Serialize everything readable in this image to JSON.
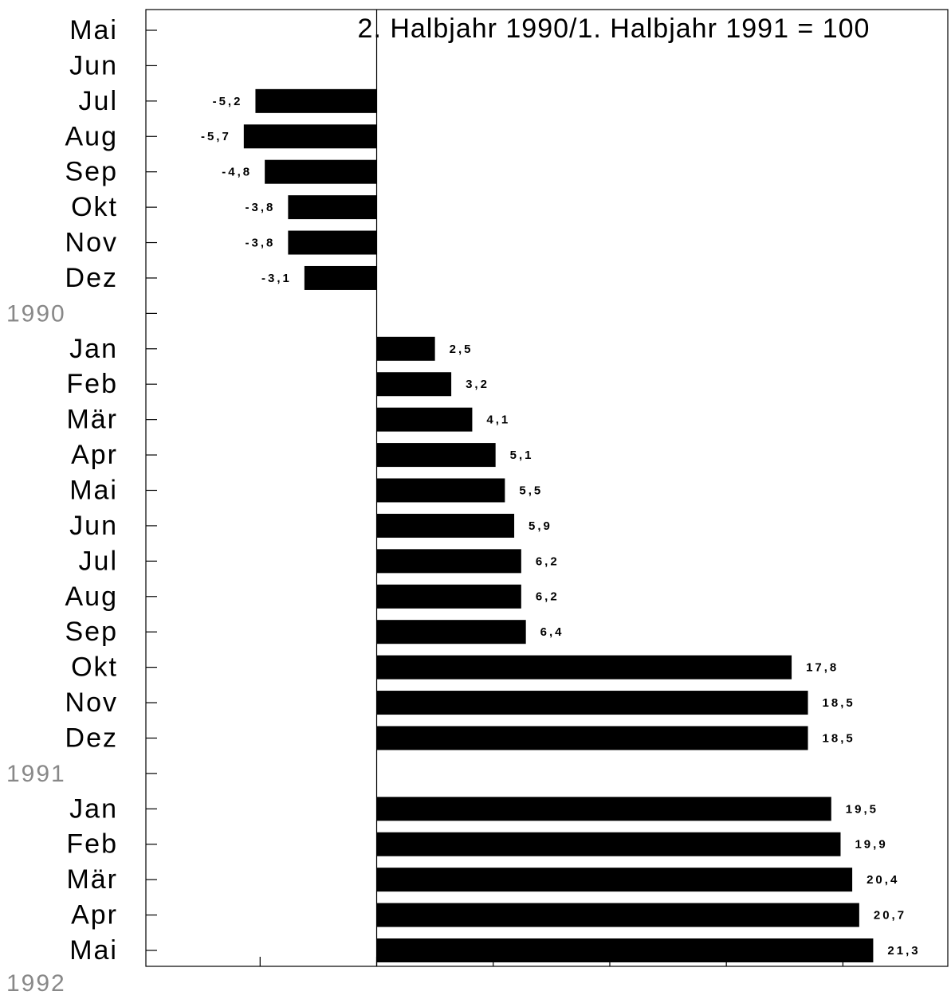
{
  "chart_data": {
    "type": "bar",
    "orientation": "horizontal",
    "title": "2. Halbjahr 1990/1. Halbjahr 1991 = 100",
    "categories": [
      "Mai",
      "Jun",
      "Jul",
      "Aug",
      "Sep",
      "Okt",
      "Nov",
      "Dez",
      "1990",
      "Jan",
      "Feb",
      "Mär",
      "Apr",
      "Mai",
      "Jun",
      "Jul",
      "Aug",
      "Sep",
      "Okt",
      "Nov",
      "Dez",
      "1991",
      "Jan",
      "Feb",
      "Mär",
      "Apr",
      "Mai"
    ],
    "values": [
      null,
      null,
      -5.2,
      -5.7,
      -4.8,
      -3.8,
      -3.8,
      -3.1,
      null,
      2.5,
      3.2,
      4.1,
      5.1,
      5.5,
      5.9,
      6.2,
      6.2,
      6.4,
      17.8,
      18.5,
      18.5,
      null,
      19.5,
      19.9,
      20.4,
      20.7,
      21.3
    ],
    "value_labels": [
      null,
      null,
      "-5,2",
      "-5,7",
      "-4,8",
      "-3,8",
      "-3,8",
      "-3,1",
      null,
      "2,5",
      "3,2",
      "4,1",
      "5,1",
      "5,5",
      "5,9",
      "6,2",
      "6,2",
      "6,4",
      "17,8",
      "18,5",
      "18,5",
      null,
      "19,5",
      "19,9",
      "20,4",
      "20,7",
      "21,3"
    ],
    "end_label": "1992",
    "color": "#000000",
    "xlim": [
      -9.9,
      24.5
    ],
    "xticks": [
      -5,
      0,
      5,
      10,
      15,
      20
    ]
  }
}
